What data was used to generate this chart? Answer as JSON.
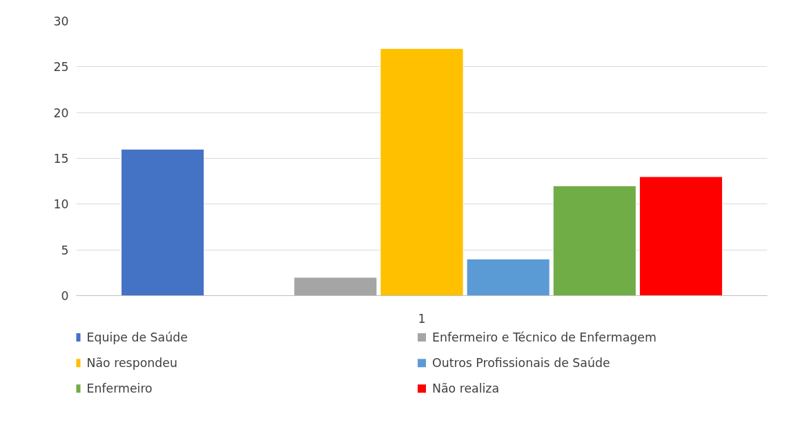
{
  "chart_data": {
    "type": "bar",
    "categories": [
      "1"
    ],
    "series": [
      {
        "name": "Equipe de Saúde",
        "color": "#4472c4",
        "values": [
          16
        ]
      },
      {
        "values": [
          null
        ]
      },
      {
        "name": "Enfermeiro e Técnico de Enfermagem",
        "color": "#a5a5a5",
        "values": [
          2
        ]
      },
      {
        "name": "Não respondeu",
        "color": "#ffc000",
        "values": [
          27
        ]
      },
      {
        "name": "Outros Profissionais de Saúde",
        "color": "#5b9bd5",
        "values": [
          4
        ]
      },
      {
        "name": "Enfermeiro",
        "color": "#70ad47",
        "values": [
          12
        ]
      },
      {
        "name": "Não realiza",
        "color": "#ff0000",
        "values": [
          13
        ]
      }
    ],
    "ylim": [
      0,
      30
    ],
    "yticks": [
      0,
      5,
      10,
      15,
      20,
      25,
      30
    ],
    "grid": "y",
    "legend": "bottom"
  }
}
